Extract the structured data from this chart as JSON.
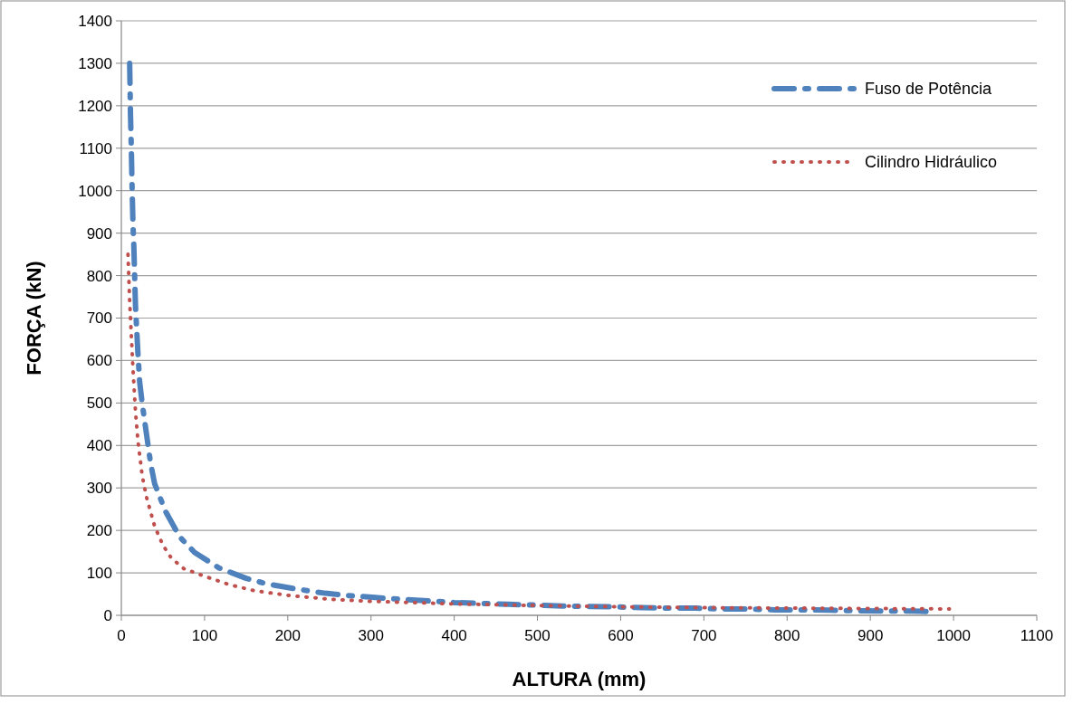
{
  "chart_data": {
    "type": "line",
    "xlabel": "ALTURA (mm)",
    "ylabel": "FORÇA (kN)",
    "xlim": [
      0,
      1100
    ],
    "xticks": [
      0,
      100,
      200,
      300,
      400,
      500,
      600,
      700,
      800,
      900,
      1000,
      1100
    ],
    "ylim": [
      0,
      1400
    ],
    "yticks": [
      0,
      100,
      200,
      300,
      400,
      500,
      600,
      700,
      800,
      900,
      1000,
      1100,
      1200,
      1300,
      1400
    ],
    "grid": "y",
    "legend": "top right",
    "series": [
      {
        "name": "Fuso de Potência",
        "color": "#4f81bd",
        "line_style": "dashed",
        "x": [
          10,
          11,
          12,
          13,
          14,
          15,
          16,
          17,
          18,
          20,
          22,
          25,
          30,
          35,
          40,
          53,
          70,
          88,
          117,
          150,
          175,
          210,
          245,
          270,
          305,
          340,
          370,
          400,
          435,
          465,
          500,
          530,
          560,
          595,
          625,
          655,
          690,
          720,
          750,
          785,
          820,
          850,
          880,
          915,
          945,
          975
        ],
        "values": [
          1300,
          1180,
          1100,
          1000,
          920,
          870,
          800,
          730,
          690,
          615,
          550,
          500,
          430,
          360,
          310,
          245,
          185,
          148,
          112,
          87,
          74,
          62,
          52,
          47,
          42,
          37,
          34,
          30,
          28,
          26,
          24,
          22,
          21,
          20,
          18,
          17,
          17,
          15,
          15,
          13,
          13,
          12,
          11,
          10,
          10,
          9
        ]
      },
      {
        "name": "Cilindro Hidráulico",
        "color": "#c0504d",
        "line_style": "dotted",
        "x": [
          8,
          10,
          12,
          14,
          17,
          20,
          25,
          30,
          40,
          50,
          60,
          75,
          100,
          130,
          160,
          200,
          250,
          300,
          400,
          500,
          600,
          700,
          800,
          900,
          995
        ],
        "values": [
          850,
          740,
          660,
          580,
          480,
          410,
          330,
          280,
          210,
          165,
          135,
          110,
          92,
          72,
          58,
          47,
          38,
          33,
          27,
          23,
          20,
          18,
          17,
          16,
          15
        ]
      }
    ]
  }
}
